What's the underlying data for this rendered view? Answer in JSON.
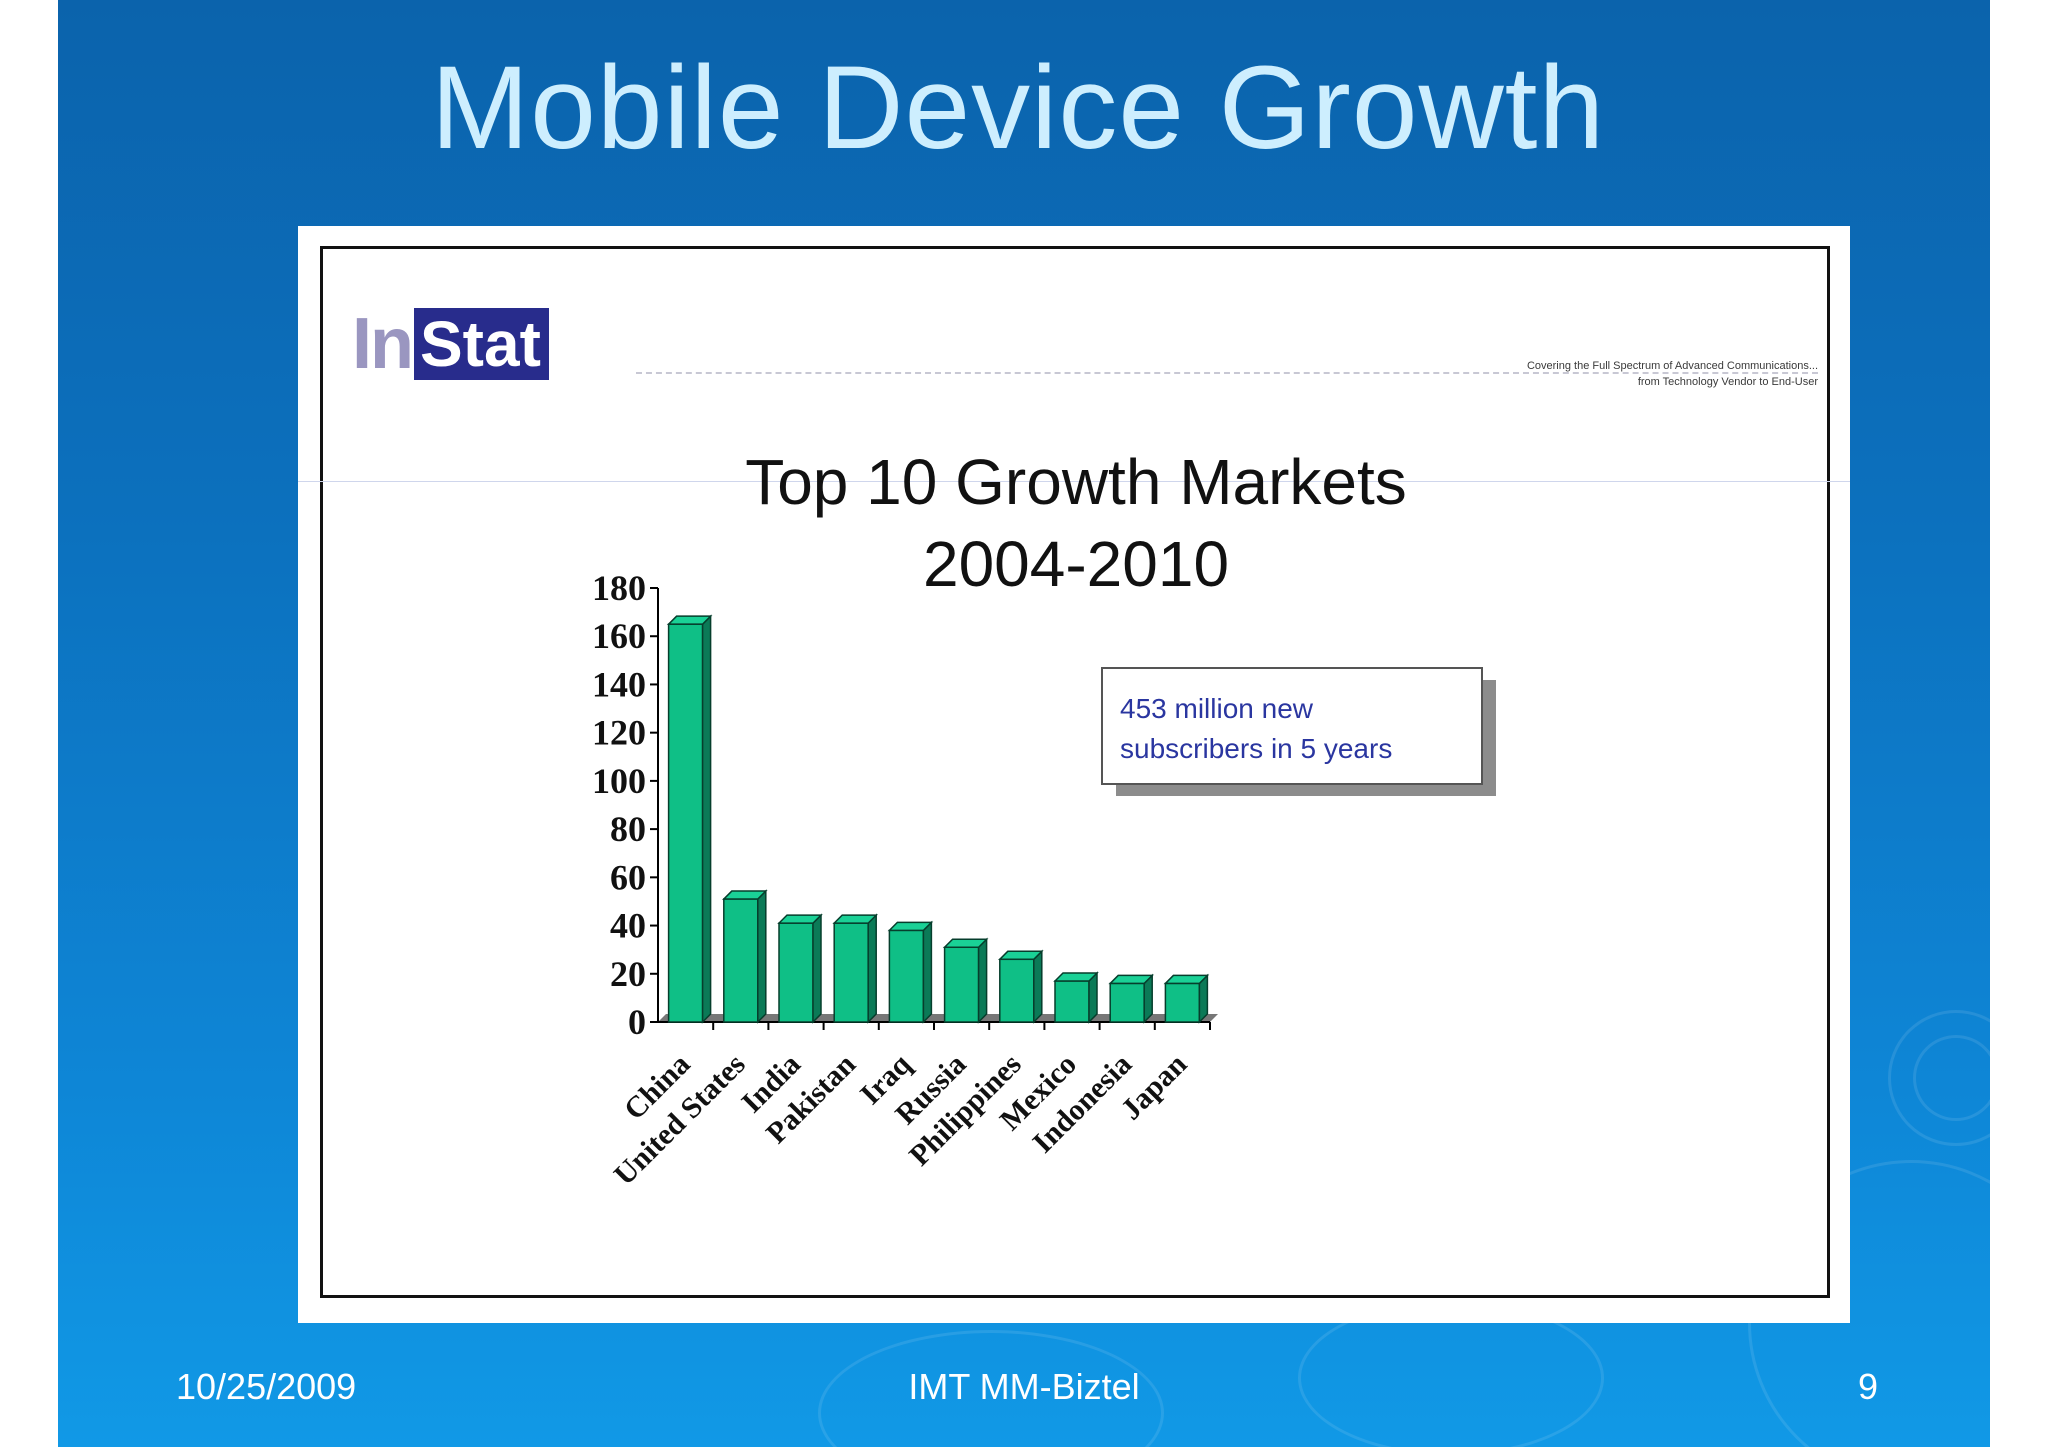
{
  "slide": {
    "title": "Mobile Device Growth",
    "footer": {
      "date": "10/25/2009",
      "center": "IMT MM-Biztel",
      "page": "9"
    }
  },
  "logo": {
    "in": "In",
    "stat": "Stat"
  },
  "tagline": {
    "line1": "Covering the Full Spectrum of Advanced Communications...",
    "line2": "from Technology Vendor to End-User"
  },
  "callout": {
    "line1": "453 million new",
    "line2": "subscribers in 5 years"
  },
  "colors": {
    "bar_front": "#0fbf86",
    "bar_top": "#1ad196",
    "bar_side": "#0b7a57",
    "floor": "#777777"
  },
  "chart_data": {
    "type": "bar",
    "title": "Top 10 Growth Markets",
    "subtitle": "2004-2010",
    "categories": [
      "China",
      "United States",
      "India",
      "Pakistan",
      "Iraq",
      "Russia",
      "Philippines",
      "Mexico",
      "Indonesia",
      "Japan"
    ],
    "values": [
      165,
      51,
      41,
      41,
      38,
      31,
      26,
      17,
      16,
      16
    ],
    "ylim": [
      0,
      180
    ],
    "yticks": [
      0,
      20,
      40,
      60,
      80,
      100,
      120,
      140,
      160,
      180
    ],
    "xlabel": "",
    "ylabel": "",
    "grid": false
  }
}
